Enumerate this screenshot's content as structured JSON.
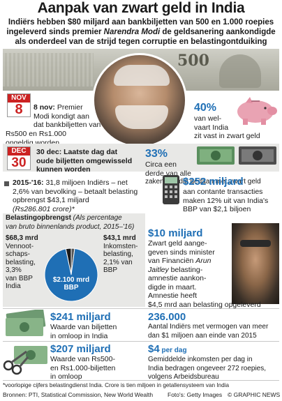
{
  "header": {
    "title": "Aanpak van zwart geld in India",
    "subtitle_line1": "Indiërs hebben $80 miljard aan bankbiljetten van 500 en 1.000 roepies",
    "subtitle_line2_a": "ingeleverd sinds premier ",
    "subtitle_line2_name": "Narendra Modi",
    "subtitle_line2_b": " de geldsanering aankondigde",
    "subtitle_line3": "als onderdeel van de strijd tegen corruptie en belastingontduiking"
  },
  "nov8": {
    "month": "NOV",
    "day": "8",
    "text_bold": "8 nov:",
    "text_1": " Premier",
    "text_2": "Modi kondigt aan",
    "text_3": "dat bankbiljetten van",
    "text_4": "Rs500 en Rs1.000",
    "text_5": "ongeldig worden"
  },
  "stat40": {
    "value": "40%",
    "l1": "van wel-",
    "l2": "vaart India",
    "l3": "zit vast in zwart geld"
  },
  "dec30": {
    "month": "DEC",
    "day": "30",
    "l1": "30 dec: Laatste dag dat",
    "l2": "oude biljetten omgewisseld",
    "l3": "kunnen worden"
  },
  "stat33": {
    "value": "33%",
    "l1": "Circa een",
    "l2": "derde van alle",
    "l3": "zaken in India gedaan met zwart geld"
  },
  "taxpayers": {
    "bold": "2015-'16:",
    "l1": " 31,8 miljoen Indiërs – net",
    "l2": "2,6% van bevolking – betaalt belasting",
    "l3": "opbrengst $43,1 miljard",
    "l4": "(Rs286.801 crore)*"
  },
  "stat252": {
    "value": "$252 miljard",
    "l1": "aan contante transacties",
    "l2": "maken 12% uit van India's",
    "l3": "BBP van $2,1 biljoen"
  },
  "revenue": {
    "title_bold": "Belastingopbrengst",
    "title_rest": " (Als percentage",
    "title_l2": "van bruto binnenlands product, 2015–'16)",
    "left_value": "$68,3 mrd",
    "left_l1": "Vennoot-",
    "left_l2": "schaps-",
    "left_l3": "belasting,",
    "left_l4": "3,3%",
    "left_l5": "van BBP",
    "left_l6": "India",
    "right_value": "$43,1 mrd",
    "right_l1": "Inkomsten-",
    "right_l2": "belasting,",
    "right_l3": "2,1% van",
    "right_l4": "BBP",
    "center_l1": "$2.100 mrd",
    "center_l2": "BBP"
  },
  "chart_data": {
    "type": "pie",
    "title": "Belastingopbrengst",
    "total_label": "$2.100 mrd BBP",
    "slices": [
      {
        "name": "Vennootschapsbelasting",
        "percent": 3.3,
        "value_usd_bn": 68.3,
        "color": "#1a1a1a"
      },
      {
        "name": "Inkomstenbelasting",
        "percent": 2.1,
        "value_usd_bn": 43.1,
        "color": "#555555"
      },
      {
        "name": "",
        "percent": 94.6,
        "color": "#1f6fb5"
      }
    ]
  },
  "stat10": {
    "value": "$10 miljard",
    "l1": "Zwart geld aange-",
    "l2": "geven sinds minister",
    "l3": "van Financiën ",
    "l3_name": "Arun",
    "l4_name": "Jaitley",
    "l4": " belasting-",
    "l5": "amnestie aankon-",
    "l6": "digde in maart.",
    "l7": "Amnestie heeft",
    "l8": "$4,5 mrd aan belasting opgeleverd"
  },
  "stat241": {
    "value": "$241 miljard",
    "l1": "Waarde van biljetten",
    "l2": "in omloop in India"
  },
  "stat236": {
    "value": "236.000",
    "l1": "Aantal Indiërs met vermogen van meer",
    "l2": "dan $1 miljoen aan einde van 2015"
  },
  "stat207": {
    "value": "$207 miljard",
    "l1": "Waarde van Rs500-",
    "l2": "en Rs1.000-biljetten",
    "l3": "in omloop"
  },
  "stat4": {
    "value": "$4",
    "unit": " per dag",
    "l1": "Gemiddelde inkomsten per dag in",
    "l2": "India bedragen ongeveer 272 roepies,",
    "l3": "volgens Arbeidsbureau"
  },
  "note_line": "*voorlopige cijfers belastingdienst India. Crore is tien miljoen in getallensysteem van India",
  "sources": "Bronnen: PTI, Statistical Commission, New World Wealth",
  "photos": "Foto's: Getty Images",
  "credit": "© GRAPHIC NEWS",
  "banknote": {
    "denomination": "500"
  },
  "colors": {
    "accent_blue": "#1f6fb5",
    "calendar_red": "#cc2222",
    "panel_grey": "#e8e8e6",
    "piggy_pink": "#e9a3b3"
  }
}
